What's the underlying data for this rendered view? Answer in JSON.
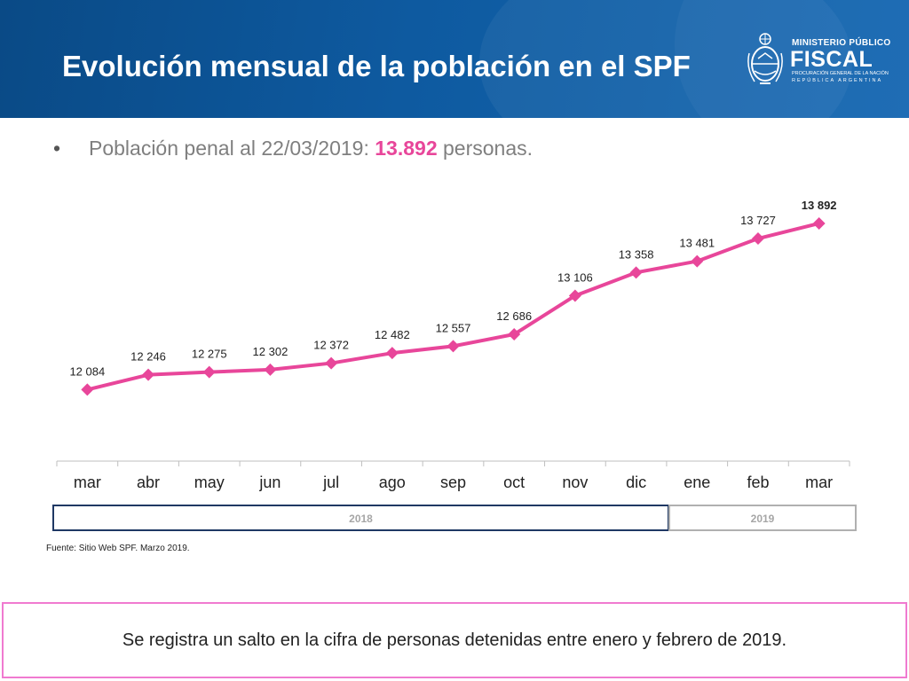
{
  "header": {
    "title": "Evolución mensual de la población en el SPF",
    "logo": {
      "line1": "MINISTERIO PÚBLICO",
      "line2": "FISCAL",
      "line3": "PROCURACIÓN GENERAL DE LA NACIÓN",
      "line4": "REPÚBLICA ARGENTINA",
      "icon": "coat-of-arms-icon"
    }
  },
  "bullet": {
    "marker": "•",
    "prefix": "Población penal al 22/03/2019",
    "colon": ":",
    "highlight": "13.892",
    "suffix": "personas."
  },
  "chart_data": {
    "type": "line",
    "categories": [
      "mar",
      "abr",
      "may",
      "jun",
      "jul",
      "ago",
      "sep",
      "oct",
      "nov",
      "dic",
      "ene",
      "feb",
      "mar"
    ],
    "series": [
      {
        "values": [
          12084,
          12246,
          12275,
          12302,
          12372,
          12482,
          12557,
          12686,
          13106,
          13358,
          13481,
          13727,
          13892
        ],
        "labels": [
          "12 084",
          "12 246",
          "12 275",
          "12 302",
          "12 372",
          "12 482",
          "12 557",
          "12 686",
          "13 106",
          "13 358",
          "13 481",
          "13 727",
          "13 892"
        ],
        "color": "#e8469a"
      }
    ],
    "year_groups": [
      {
        "label": "2018",
        "start": 0,
        "end": 9
      },
      {
        "label": "2019",
        "start": 10,
        "end": 12
      }
    ],
    "ylim": [
      11500,
      14200
    ],
    "grid": false,
    "title": "",
    "xlabel": "",
    "ylabel": ""
  },
  "source": "Fuente: Sitio Web SPF. Marzo 2019.",
  "callout": "Se registra un salto en la cifra de personas detenidas entre enero y febrero de 2019.",
  "colors": {
    "header_bg": "#0e5aa0",
    "accent": "#e8469a",
    "callout_border": "#f07ad0",
    "year_2018_border": "#1f3864",
    "year_2019_border": "#b0b0b0"
  }
}
